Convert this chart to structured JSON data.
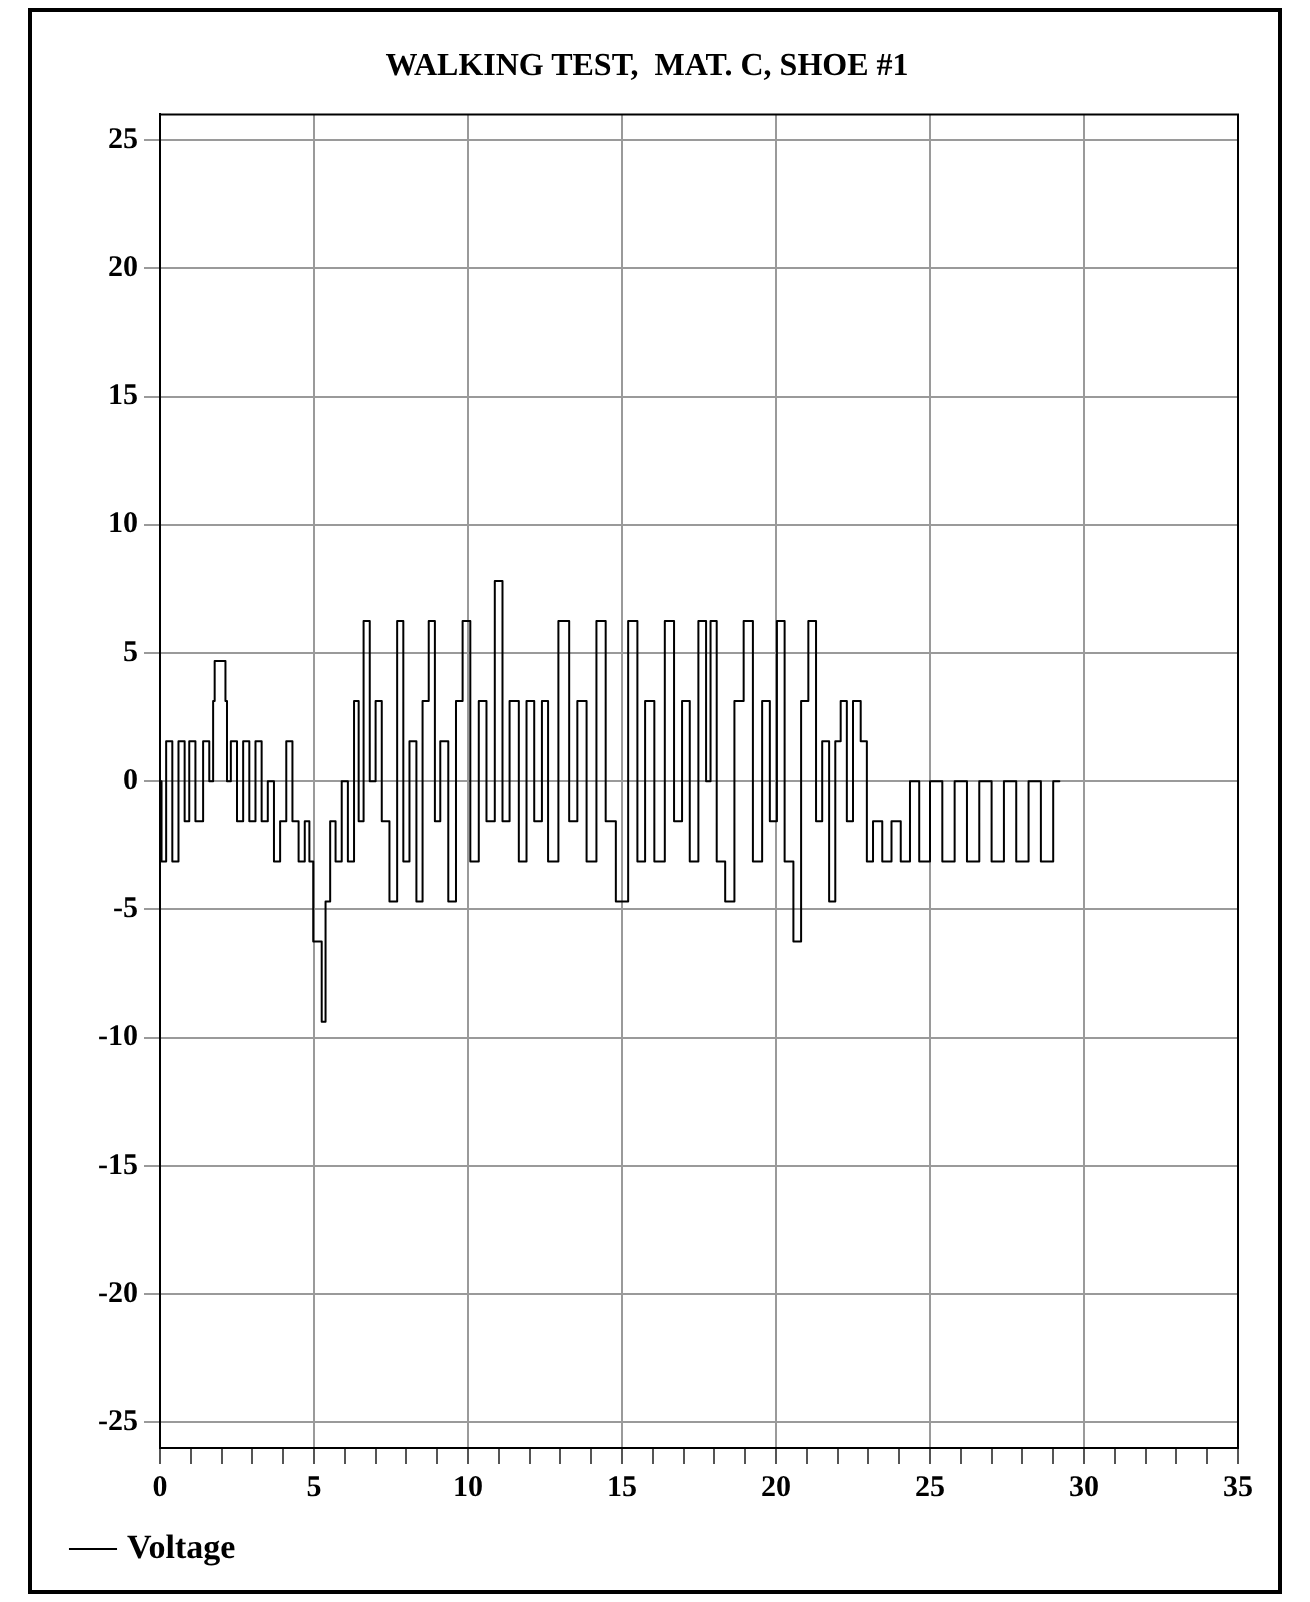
{
  "chart_data": {
    "type": "step",
    "title": "WALKING TEST,  MAT. C, SHOE #1",
    "x": [
      0,
      0.1,
      0.3,
      0.5,
      0.7,
      0.9,
      1.0,
      1.3,
      1.5,
      1.7,
      1.75,
      1.8,
      2.1,
      2.15,
      2.2,
      2.4,
      2.6,
      2.8,
      3.0,
      3.2,
      3.4,
      3.6,
      3.8,
      4.0,
      4.2,
      4.4,
      4.6,
      4.8,
      4.9,
      5.05,
      5.2,
      5.3,
      5.45,
      5.6,
      5.8,
      6.0,
      6.2,
      6.4,
      6.5,
      6.72,
      6.9,
      7.1,
      7.3,
      7.6,
      7.8,
      8.0,
      8.2,
      8.45,
      8.6,
      8.85,
      9.0,
      9.2,
      9.52,
      9.7,
      9.95,
      10.2,
      10.5,
      10.7,
      11.04,
      11.2,
      11.5,
      11.8,
      12.0,
      12.3,
      12.5,
      12.7,
      13.17,
      13.4,
      13.7,
      14.0,
      14.34,
      14.6,
      15.0,
      15.4,
      15.6,
      15.9,
      16.2,
      16.58,
      16.8,
      17.1,
      17.3,
      17.66,
      17.8,
      17.95,
      18.2,
      18.5,
      18.8,
      19.1,
      19.4,
      19.7,
      19.9,
      20.16,
      20.4,
      20.73,
      20.9,
      21.2,
      21.4,
      21.6,
      21.85,
      22.0,
      22.2,
      22.4,
      22.6,
      22.9,
      23.0,
      23.3,
      23.6,
      23.9,
      24.2,
      24.5,
      24.8,
      25.2,
      25.6,
      26.0,
      26.4,
      26.8,
      27.2,
      27.6,
      28.0,
      28.4,
      28.8,
      29.2
    ],
    "series": [
      {
        "name": "Voltage",
        "color": "#000000",
        "values": [
          0,
          -3.13,
          1.56,
          -3.13,
          1.56,
          -1.56,
          1.56,
          -1.56,
          1.56,
          0,
          3.13,
          4.69,
          4.69,
          3.13,
          0,
          1.56,
          -1.56,
          1.56,
          -1.56,
          1.56,
          -1.56,
          0,
          -3.13,
          -1.56,
          1.56,
          -1.56,
          -3.13,
          -1.56,
          -3.13,
          -6.25,
          -6.25,
          -9.38,
          -4.69,
          -1.56,
          -3.13,
          0,
          -3.13,
          3.13,
          -1.56,
          6.25,
          0,
          3.13,
          -1.56,
          -4.69,
          6.25,
          -3.13,
          1.56,
          -4.69,
          3.13,
          6.25,
          -1.56,
          1.56,
          -4.69,
          3.13,
          6.25,
          -3.13,
          3.13,
          -1.56,
          7.81,
          -1.56,
          3.13,
          -3.13,
          3.13,
          -1.56,
          3.13,
          -3.13,
          6.25,
          -1.56,
          3.13,
          -3.13,
          6.25,
          -1.56,
          -4.69,
          6.25,
          -3.13,
          3.13,
          -3.13,
          6.25,
          -1.56,
          3.13,
          -3.13,
          6.25,
          0,
          6.25,
          -3.13,
          -4.69,
          3.13,
          6.25,
          -3.13,
          3.13,
          -1.56,
          6.25,
          -3.13,
          -6.25,
          3.13,
          6.25,
          -1.56,
          1.56,
          -4.69,
          1.56,
          3.13,
          -1.56,
          3.13,
          1.56,
          -3.13,
          -1.56,
          -3.13,
          -1.56,
          -3.13,
          0,
          -3.13,
          0,
          -3.13,
          0,
          -3.13,
          0,
          -3.13,
          0,
          -3.13,
          0,
          -3.13,
          0
        ]
      }
    ],
    "xlim": [
      0,
      35
    ],
    "xticks": [
      0,
      {
        "value": 1,
        "label": null
      },
      {
        "value": 2,
        "label": null
      },
      {
        "value": 3,
        "label": null
      },
      {
        "value": 4,
        "label": null
      },
      5,
      {
        "value": 6,
        "label": null
      },
      {
        "value": 7,
        "label": null
      },
      {
        "value": 8,
        "label": null
      },
      {
        "value": 9,
        "label": null
      },
      10,
      {
        "value": 11,
        "label": null
      },
      {
        "value": 12,
        "label": null
      },
      {
        "value": 13,
        "label": null
      },
      {
        "value": 14,
        "label": null
      },
      15,
      {
        "value": 16,
        "label": null
      },
      {
        "value": 17,
        "label": null
      },
      {
        "value": 18,
        "label": null
      },
      {
        "value": 19,
        "label": null
      },
      20,
      {
        "value": 21,
        "label": null
      },
      {
        "value": 22,
        "label": null
      },
      {
        "value": 23,
        "label": null
      },
      {
        "value": 24,
        "label": null
      },
      25,
      {
        "value": 26,
        "label": null
      },
      {
        "value": 27,
        "label": null
      },
      {
        "value": 28,
        "label": null
      },
      {
        "value": 29,
        "label": null
      },
      30,
      {
        "value": 31,
        "label": null
      },
      {
        "value": 32,
        "label": null
      },
      {
        "value": 33,
        "label": null
      },
      {
        "value": 34,
        "label": null
      },
      35
    ],
    "ylim": [
      -26,
      26
    ],
    "yticks": [
      -25,
      -20,
      -15,
      -10,
      -5,
      0,
      5,
      10,
      15,
      20,
      25
    ],
    "grid": true,
    "legend": "bottom left",
    "marker": "none",
    "line_style": "solid"
  }
}
